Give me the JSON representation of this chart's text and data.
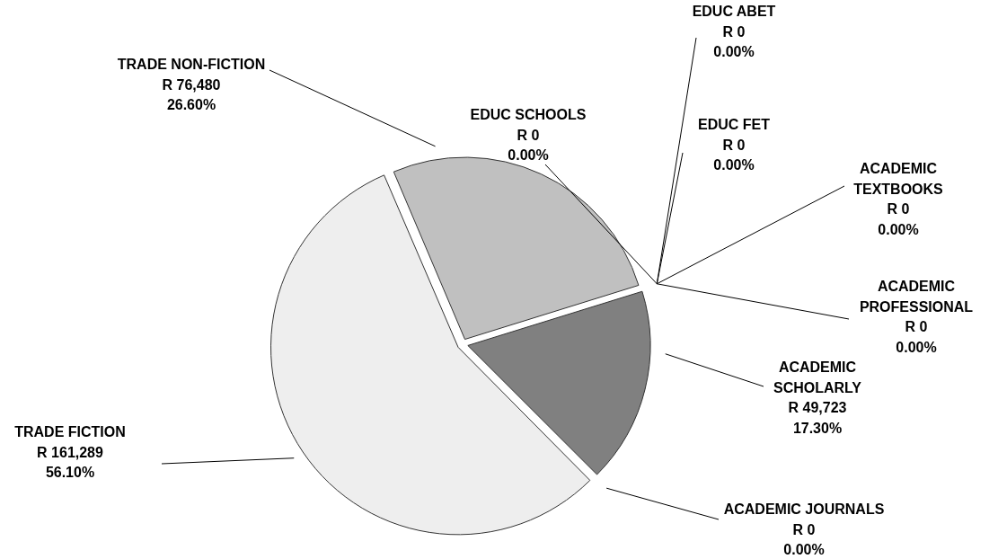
{
  "chart_data": {
    "type": "pie",
    "categories": [
      "TRADE FICTION",
      "TRADE NON-FICTION",
      "EDUC SCHOOLS",
      "EDUC ABET",
      "EDUC FET",
      "ACADEMIC TEXTBOOKS",
      "ACADEMIC PROFESSIONAL",
      "ACADEMIC SCHOLARLY",
      "ACADEMIC JOURNALS"
    ],
    "values": [
      161289,
      76480,
      0,
      0,
      0,
      0,
      0,
      49723,
      0
    ],
    "value_labels": [
      "R 161,289\n56.10%",
      "R 76,480\n26.60%",
      "R 0\n0.00%",
      "R 0\n0.00%",
      "R 0\n0.00%",
      "R 0\n0.00%",
      "R 0\n0.00%",
      "R 49,723\n17.30%",
      "R 0\n0.00%"
    ],
    "colors": [
      "#eeeeee",
      "#c0c0c0",
      "#a0a0a0",
      "#909090",
      "#b0b0b0",
      "#d0d0d0",
      "#707070",
      "#808080",
      "#606060"
    ],
    "legend": false
  }
}
